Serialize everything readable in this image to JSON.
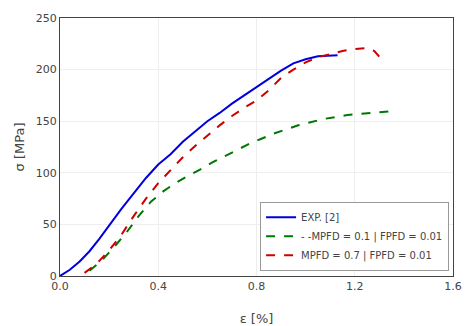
{
  "chart_data": {
    "type": "line",
    "title": "",
    "xlabel": "ε [%]",
    "ylabel": "σ [MPa]",
    "xlim": [
      0,
      1.6
    ],
    "ylim": [
      0,
      250
    ],
    "xticks": [
      {
        "value": 0,
        "label": "0.0"
      },
      0.4,
      0.8,
      1.2,
      1.6
    ],
    "yticks": [
      0,
      50,
      100,
      150,
      200,
      250
    ],
    "grid": true,
    "legend": "lower right",
    "series": [
      {
        "name": "EXP. [2]",
        "color": "#0000dd",
        "line_style": "solid",
        "x": [
          0.0,
          0.04,
          0.08,
          0.12,
          0.16,
          0.2,
          0.25,
          0.3,
          0.35,
          0.4,
          0.45,
          0.5,
          0.55,
          0.6,
          0.65,
          0.7,
          0.75,
          0.8,
          0.85,
          0.9,
          0.95,
          1.0,
          1.05,
          1.1,
          1.13
        ],
        "values": [
          0,
          6,
          14,
          24,
          36,
          49,
          65,
          80,
          95,
          108,
          118,
          130,
          140,
          150,
          158,
          167,
          175,
          183,
          191,
          199,
          206,
          210,
          213,
          214,
          214
        ]
      },
      {
        "name": "- -MPFD = 0.1 | FPFD = 0.01",
        "color": "#007700",
        "line_style": "dashed",
        "x": [
          0.12,
          0.17,
          0.22,
          0.27,
          0.32,
          0.37,
          0.42,
          0.47,
          0.52,
          0.57,
          0.62,
          0.67,
          0.72,
          0.77,
          0.82,
          0.87,
          0.92,
          0.97,
          1.02,
          1.07,
          1.12,
          1.17,
          1.22,
          1.27,
          1.32,
          1.37
        ],
        "values": [
          5,
          15,
          28,
          42,
          58,
          72,
          82,
          90,
          97,
          103,
          110,
          116,
          122,
          128,
          133,
          138,
          142,
          146,
          149,
          152,
          154,
          156,
          157,
          158,
          159,
          160
        ]
      },
      {
        "name": "MPFD = 0.7 | FPFD = 0.01",
        "color": "#cc0000",
        "line_style": "dashed",
        "x": [
          0.1,
          0.15,
          0.2,
          0.25,
          0.3,
          0.35,
          0.4,
          0.45,
          0.5,
          0.55,
          0.6,
          0.65,
          0.7,
          0.75,
          0.8,
          0.85,
          0.9,
          0.95,
          1.0,
          1.05,
          1.1,
          1.15,
          1.2,
          1.25,
          1.28,
          1.3,
          1.32
        ],
        "values": [
          3,
          12,
          25,
          40,
          58,
          75,
          90,
          103,
          115,
          126,
          136,
          146,
          155,
          163,
          170,
          180,
          192,
          200,
          207,
          212,
          215,
          218,
          220,
          221,
          218,
          213,
          207
        ]
      }
    ]
  }
}
